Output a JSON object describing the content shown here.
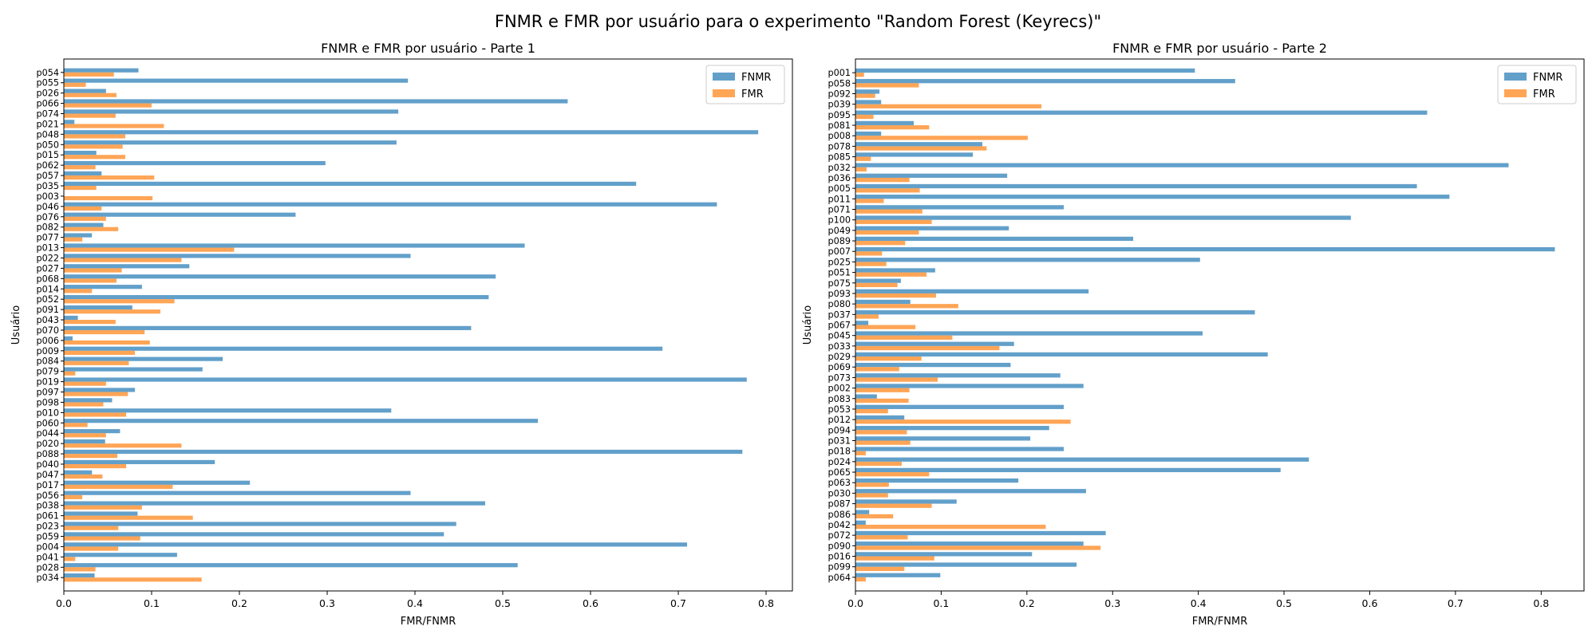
{
  "suptitle": "FNMR e FMR por usuário para o experimento \"Random Forest (Keyrecs)\"",
  "colors": {
    "FNMR": "#1f77b4",
    "FMR": "#ff7f0e"
  },
  "chart_data": [
    {
      "type": "bar",
      "orientation": "horizontal",
      "title": "FNMR e FMR por usuário - Parte 1",
      "xlabel": "FMR/FNMR",
      "ylabel": "Usuário",
      "xlim": [
        0,
        0.83
      ],
      "xticks": [
        "0.0",
        "0.1",
        "0.2",
        "0.3",
        "0.4",
        "0.5",
        "0.6",
        "0.7",
        "0.8"
      ],
      "legend": {
        "position": "top-right",
        "entries": [
          "FNMR",
          "FMR"
        ]
      },
      "categories": [
        "p054",
        "p055",
        "p026",
        "p066",
        "p074",
        "p021",
        "p048",
        "p050",
        "p015",
        "p062",
        "p057",
        "p035",
        "p003",
        "p046",
        "p076",
        "p082",
        "p077",
        "p013",
        "p022",
        "p027",
        "p068",
        "p014",
        "p052",
        "p091",
        "p043",
        "p070",
        "p006",
        "p009",
        "p084",
        "p079",
        "p019",
        "p097",
        "p098",
        "p010",
        "p060",
        "p044",
        "p020",
        "p088",
        "p040",
        "p047",
        "p017",
        "p056",
        "p038",
        "p061",
        "p023",
        "p059",
        "p004",
        "p041",
        "p028",
        "p034"
      ],
      "series": [
        {
          "name": "FNMR",
          "values": [
            0.085,
            0.392,
            0.048,
            0.574,
            0.381,
            0.012,
            0.791,
            0.379,
            0.037,
            0.298,
            0.043,
            0.652,
            0.0,
            0.744,
            0.264,
            0.045,
            0.032,
            0.525,
            0.395,
            0.143,
            0.492,
            0.089,
            0.484,
            0.078,
            0.016,
            0.464,
            0.01,
            0.682,
            0.181,
            0.158,
            0.778,
            0.081,
            0.055,
            0.373,
            0.54,
            0.064,
            0.047,
            0.773,
            0.172,
            0.032,
            0.212,
            0.395,
            0.48,
            0.084,
            0.447,
            0.433,
            0.71,
            0.129,
            0.517,
            0.035
          ]
        },
        {
          "name": "FMR",
          "values": [
            0.057,
            0.025,
            0.06,
            0.1,
            0.059,
            0.114,
            0.07,
            0.067,
            0.07,
            0.036,
            0.103,
            0.037,
            0.101,
            0.043,
            0.048,
            0.062,
            0.021,
            0.194,
            0.134,
            0.066,
            0.06,
            0.032,
            0.126,
            0.11,
            0.059,
            0.092,
            0.098,
            0.081,
            0.074,
            0.013,
            0.048,
            0.073,
            0.045,
            0.071,
            0.027,
            0.048,
            0.134,
            0.061,
            0.071,
            0.044,
            0.124,
            0.021,
            0.089,
            0.147,
            0.062,
            0.087,
            0.062,
            0.013,
            0.036,
            0.157
          ]
        }
      ]
    },
    {
      "type": "bar",
      "orientation": "horizontal",
      "title": "FNMR e FMR por usuário - Parte 2",
      "xlabel": "FMR/FNMR",
      "ylabel": "Usuário",
      "xlim": [
        0,
        0.85
      ],
      "xticks": [
        "0.0",
        "0.1",
        "0.2",
        "0.3",
        "0.4",
        "0.5",
        "0.6",
        "0.7",
        "0.8"
      ],
      "legend": {
        "position": "top-right",
        "entries": [
          "FNMR",
          "FMR"
        ]
      },
      "categories": [
        "p001",
        "p058",
        "p092",
        "p039",
        "p095",
        "p081",
        "p008",
        "p078",
        "p085",
        "p032",
        "p036",
        "p005",
        "p011",
        "p071",
        "p100",
        "p049",
        "p089",
        "p007",
        "p025",
        "p051",
        "p075",
        "p093",
        "p080",
        "p037",
        "p067",
        "p045",
        "p033",
        "p029",
        "p069",
        "p073",
        "p002",
        "p083",
        "p053",
        "p012",
        "p094",
        "p031",
        "p018",
        "p024",
        "p065",
        "p063",
        "p030",
        "p087",
        "p086",
        "p042",
        "p072",
        "p090",
        "p016",
        "p099",
        "p064"
      ],
      "series": [
        {
          "name": "FNMR",
          "values": [
            0.396,
            0.443,
            0.028,
            0.03,
            0.667,
            0.068,
            0.03,
            0.148,
            0.137,
            0.762,
            0.177,
            0.655,
            0.693,
            0.243,
            0.578,
            0.179,
            0.324,
            0.816,
            0.402,
            0.093,
            0.053,
            0.272,
            0.064,
            0.466,
            0.015,
            0.405,
            0.185,
            0.481,
            0.181,
            0.239,
            0.266,
            0.025,
            0.243,
            0.057,
            0.226,
            0.204,
            0.243,
            0.529,
            0.496,
            0.19,
            0.269,
            0.118,
            0.016,
            0.012,
            0.292,
            0.266,
            0.206,
            0.258,
            0.099
          ]
        },
        {
          "name": "FMR",
          "values": [
            0.01,
            0.074,
            0.023,
            0.217,
            0.021,
            0.086,
            0.201,
            0.153,
            0.018,
            0.013,
            0.063,
            0.075,
            0.033,
            0.078,
            0.089,
            0.074,
            0.058,
            0.031,
            0.036,
            0.083,
            0.049,
            0.094,
            0.12,
            0.027,
            0.07,
            0.113,
            0.168,
            0.077,
            0.051,
            0.096,
            0.063,
            0.062,
            0.038,
            0.251,
            0.06,
            0.064,
            0.012,
            0.054,
            0.086,
            0.039,
            0.038,
            0.089,
            0.044,
            0.222,
            0.061,
            0.286,
            0.092,
            0.057,
            0.012
          ]
        }
      ]
    }
  ]
}
